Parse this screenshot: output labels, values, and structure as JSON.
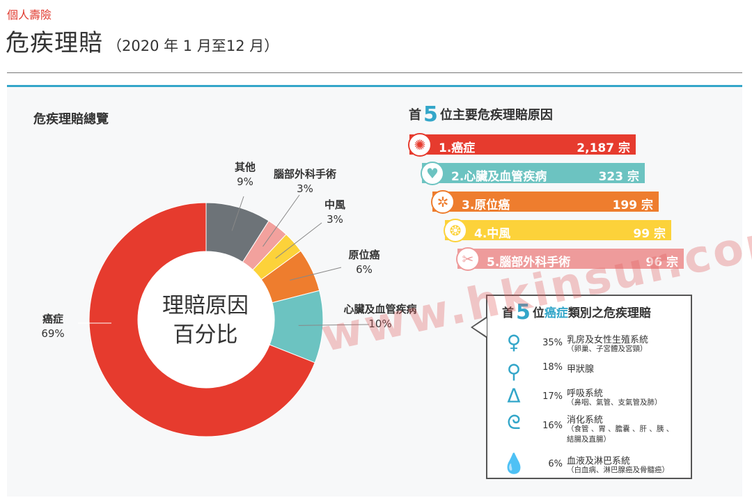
{
  "header": {
    "category": "個人壽險",
    "title": "危疾理賠",
    "period": "（2020 年 1 月至12 月）"
  },
  "overview": {
    "title": "危疾理賠總覽",
    "center_line1": "理賠原因",
    "center_line2": "百分比"
  },
  "top5": {
    "title_prefix": "首",
    "title_number": "5",
    "title_suffix": "位主要危疾理賠原因",
    "items": [
      {
        "label": "1.癌症",
        "count": "2,187 宗",
        "color": "#e63b2e",
        "icon": "cancer-cell-icon",
        "glyph": "✺"
      },
      {
        "label": "2.心臟及血管疾病",
        "count": "323 宗",
        "color": "#6cc3c1",
        "icon": "heart-icon",
        "glyph": "♥"
      },
      {
        "label": "3.原位癌",
        "count": "199 宗",
        "color": "#ee7d2e",
        "icon": "cell-icon",
        "glyph": "✲"
      },
      {
        "label": "4.中風",
        "count": "99 宗",
        "color": "#fcd23a",
        "icon": "brain-icon",
        "glyph": "❂"
      },
      {
        "label": "5.腦部外科手術",
        "count": "96 宗",
        "color": "#ee9b9b",
        "icon": "brain-surgery-icon",
        "glyph": "✂"
      }
    ]
  },
  "cancer_box": {
    "title_prefix": "首",
    "title_number": "5",
    "title_mid": "位",
    "title_highlight": "癌症",
    "title_suffix": "類別之危疾理賠",
    "items": [
      {
        "pct": "35%",
        "name": "乳房及女性生殖系統",
        "detail1": "（卵巢、子宮體及宮頸）",
        "detail2": "",
        "icon": "uterus-icon",
        "glyph": "♀"
      },
      {
        "pct": "18%",
        "name": "甲狀腺",
        "detail1": "",
        "detail2": "",
        "icon": "thyroid-icon",
        "glyph": "⚲"
      },
      {
        "pct": "17%",
        "name": "呼吸系統",
        "detail1": "（鼻咽、氣管、支氣管及肺）",
        "detail2": "",
        "icon": "lungs-icon",
        "glyph": "ᐃ"
      },
      {
        "pct": "16%",
        "name": "消化系統",
        "detail1": "（食管 、胃 、膽囊 、肝 、胰 、",
        "detail2": "結腸及直腸）",
        "icon": "stomach-icon",
        "glyph": "ᘓ"
      },
      {
        "pct": "6%",
        "name": "血液及淋巴系統",
        "detail1": "（白血病、淋巴腺癌及骨髓癌）",
        "detail2": "",
        "icon": "blood-drop-icon",
        "glyph": "💧"
      }
    ]
  },
  "watermark": "www.hkinsur.com",
  "chart_data": [
    {
      "type": "pie",
      "categories": [
        "癌症",
        "心臟及血管疾病",
        "原位癌",
        "中風",
        "腦部外科手術",
        "其他"
      ],
      "values": [
        69,
        10,
        6,
        3,
        3,
        9
      ],
      "value_labels": [
        "69%",
        "10%",
        "6%",
        "3%",
        "3%",
        "9%"
      ],
      "colors": [
        "#e63b2e",
        "#6cc3c1",
        "#ee7d2e",
        "#fcd23a",
        "#f2a19d",
        "#6d7378"
      ],
      "title": "危疾理賠總覽"
    },
    {
      "type": "bar",
      "categories": [
        "1.癌症",
        "2.心臟及血管疾病",
        "3.原位癌",
        "4.中風",
        "5.腦部外科手術"
      ],
      "values": [
        2187,
        323,
        199,
        99,
        96
      ],
      "unit": "宗",
      "title": "首5位主要危疾理賠原因"
    },
    {
      "type": "table",
      "categories": [
        "乳房及女性生殖系統",
        "甲狀腺",
        "呼吸系統",
        "消化系統",
        "血液及淋巴系統"
      ],
      "values": [
        35,
        18,
        17,
        16,
        6
      ],
      "unit": "%",
      "title": "首5位癌症類別之危疾理賠"
    }
  ]
}
